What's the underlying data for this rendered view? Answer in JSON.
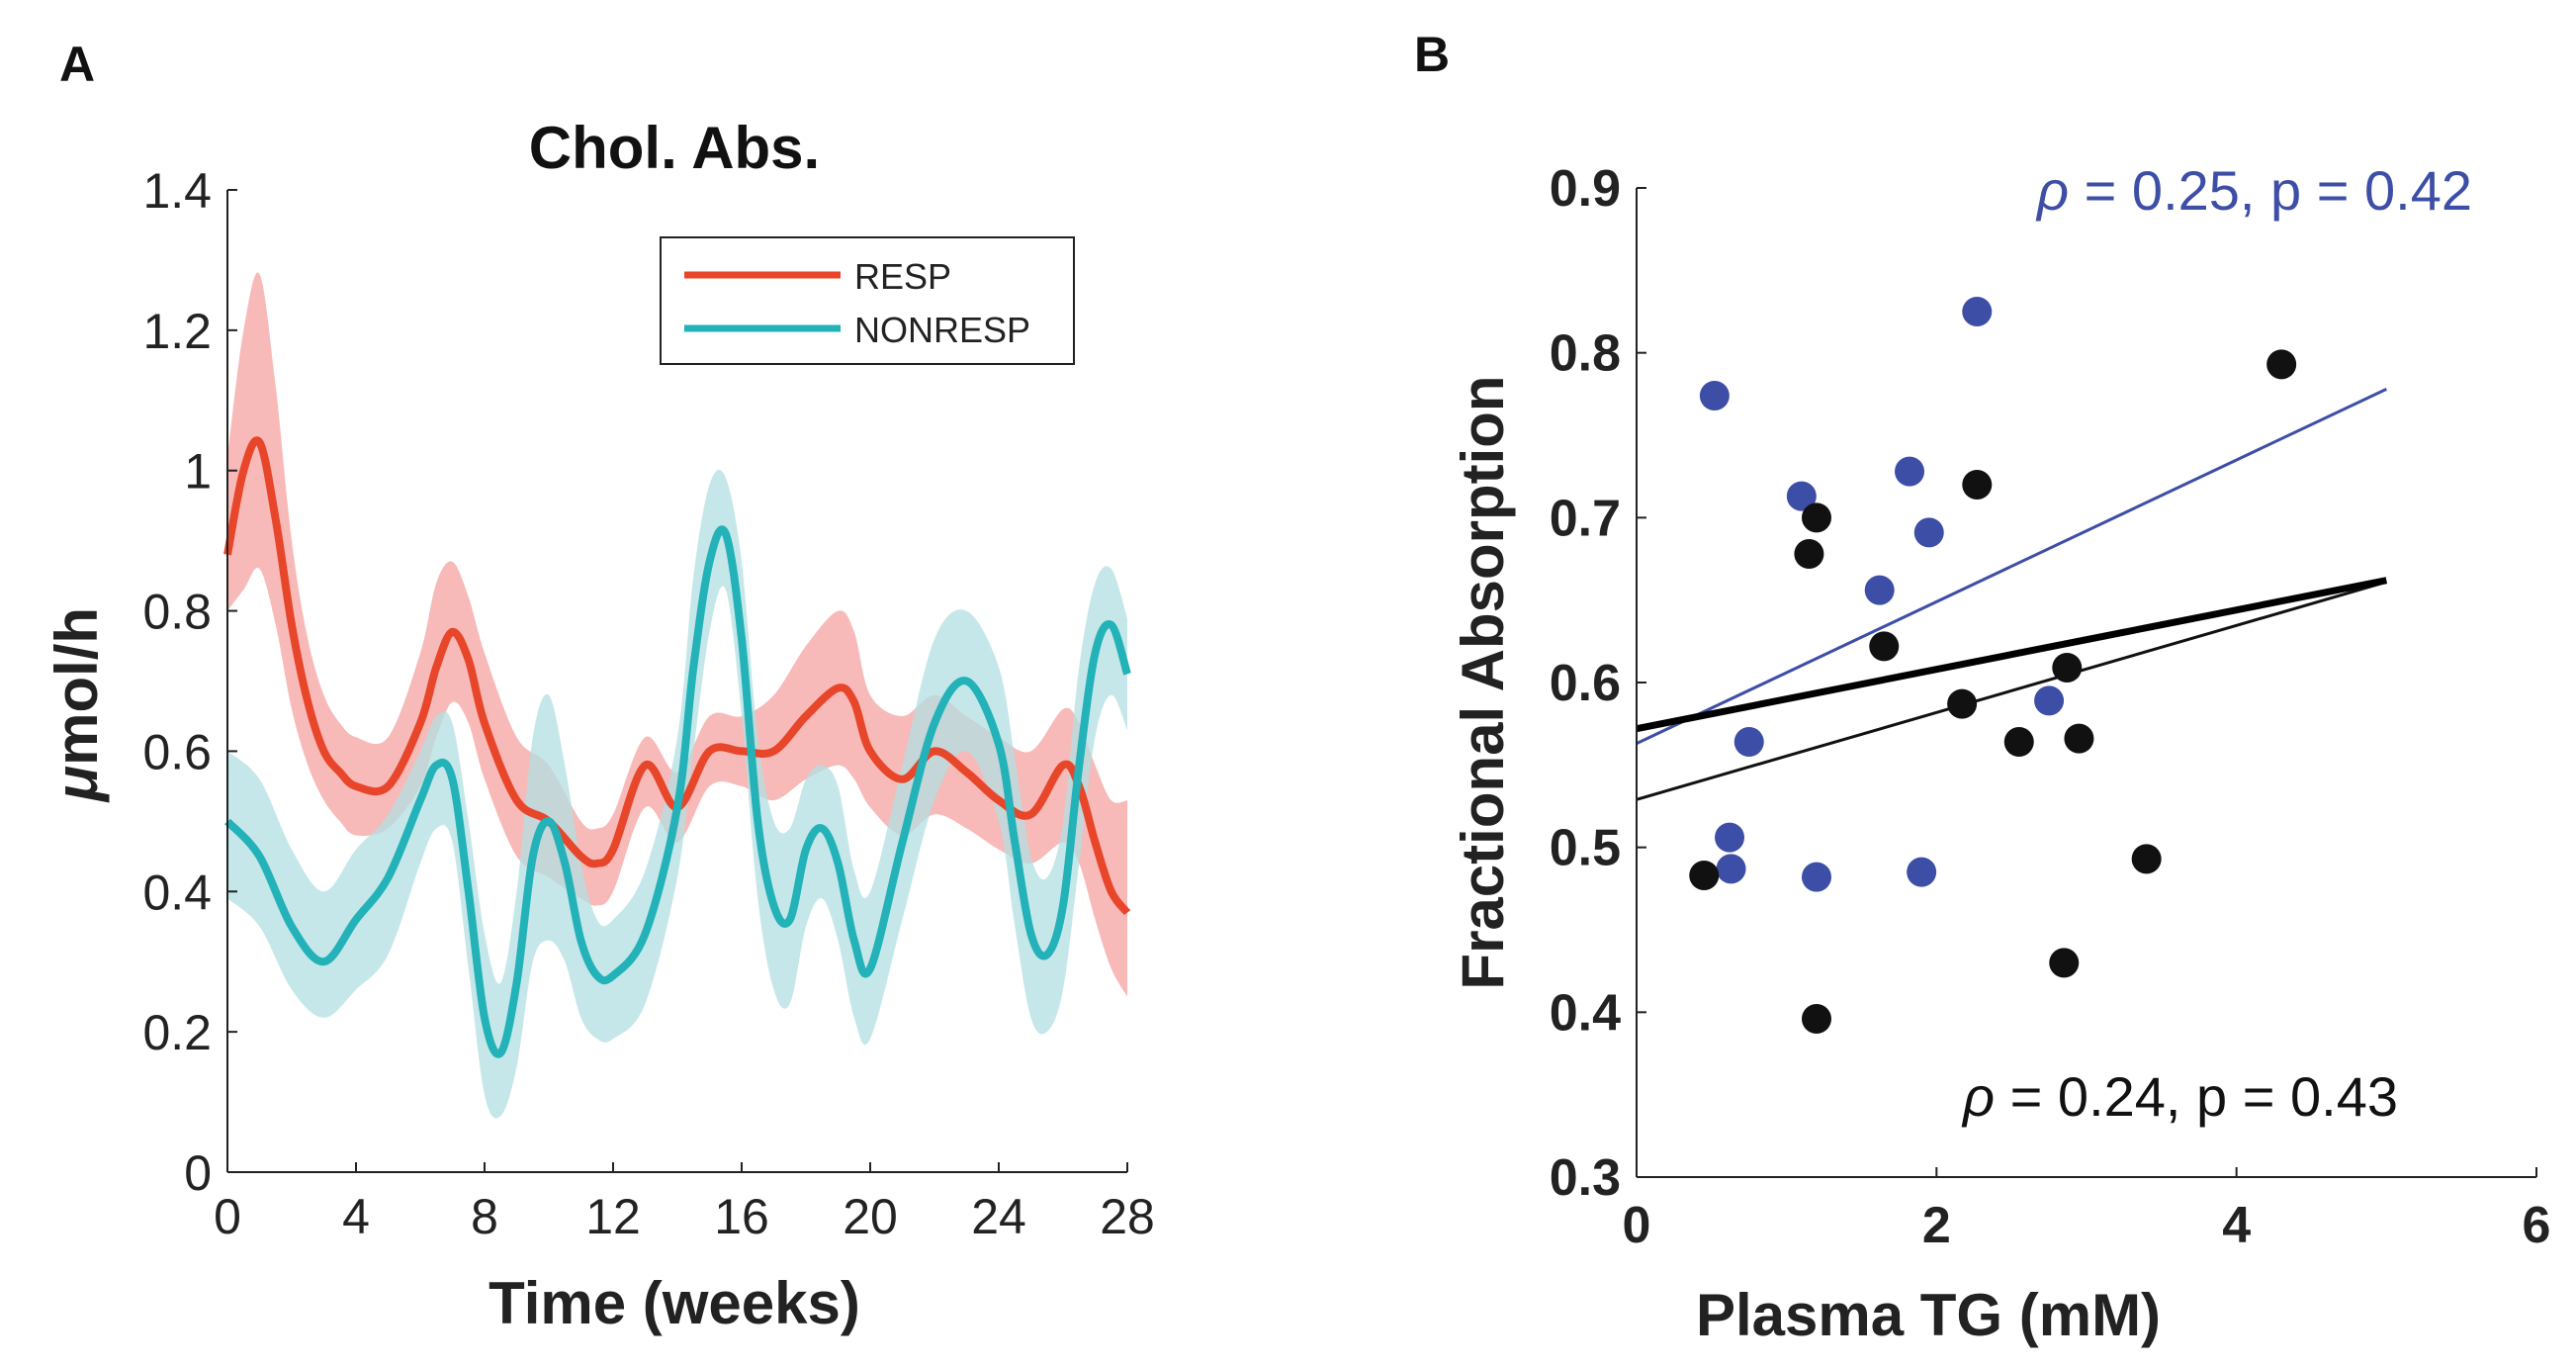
{
  "panel_a_label": "A",
  "panel_b_label": "B",
  "chart_data": [
    {
      "type": "line",
      "panel": "A",
      "title": "Chol. Abs.",
      "xlabel": "Time (weeks)",
      "ylabel": "μmol/h",
      "ylabel_prefix": "μ",
      "ylabel_rest": "mol/h",
      "xlim": [
        0,
        28
      ],
      "ylim": [
        0,
        1.4
      ],
      "xticks": [
        0,
        4,
        8,
        12,
        16,
        20,
        24,
        28
      ],
      "yticks": [
        0,
        0.2,
        0.4,
        0.6,
        0.8,
        1,
        1.2,
        1.4
      ],
      "yticklabels": [
        "0",
        "0.2",
        "0.4",
        "0.6",
        "0.8",
        "1",
        "1.2",
        "1.4"
      ],
      "legend": {
        "placement": "top-right",
        "entries": [
          "RESP",
          "NONRESP"
        ]
      },
      "series": [
        {
          "name": "RESP",
          "color": "#e8462a",
          "band_color": "#f4a3a0",
          "x": [
            0,
            0.5,
            1,
            1.5,
            2,
            2.5,
            3,
            3.5,
            4,
            5,
            6,
            6.5,
            7,
            7.5,
            8,
            9,
            10,
            11,
            11.5,
            12,
            13,
            14,
            15,
            16,
            17,
            18,
            19,
            19.5,
            20,
            21,
            22,
            23,
            24,
            25,
            26,
            26.5,
            27,
            27.5,
            28
          ],
          "values": [
            0.88,
            1.0,
            1.04,
            0.93,
            0.78,
            0.67,
            0.6,
            0.57,
            0.55,
            0.55,
            0.64,
            0.72,
            0.77,
            0.73,
            0.64,
            0.53,
            0.5,
            0.45,
            0.44,
            0.46,
            0.58,
            0.52,
            0.6,
            0.6,
            0.6,
            0.65,
            0.69,
            0.67,
            0.6,
            0.56,
            0.6,
            0.57,
            0.53,
            0.51,
            0.58,
            0.55,
            0.47,
            0.4,
            0.37
          ],
          "upper": [
            1.02,
            1.2,
            1.28,
            1.12,
            0.9,
            0.76,
            0.68,
            0.64,
            0.62,
            0.62,
            0.74,
            0.84,
            0.87,
            0.82,
            0.74,
            0.62,
            0.58,
            0.5,
            0.49,
            0.51,
            0.62,
            0.57,
            0.65,
            0.65,
            0.68,
            0.75,
            0.8,
            0.77,
            0.68,
            0.65,
            0.68,
            0.65,
            0.62,
            0.6,
            0.66,
            0.64,
            0.58,
            0.53,
            0.53
          ],
          "lower": [
            0.8,
            0.83,
            0.86,
            0.78,
            0.66,
            0.58,
            0.53,
            0.5,
            0.48,
            0.49,
            0.55,
            0.62,
            0.67,
            0.64,
            0.56,
            0.45,
            0.42,
            0.39,
            0.38,
            0.4,
            0.52,
            0.47,
            0.55,
            0.55,
            0.53,
            0.56,
            0.58,
            0.56,
            0.52,
            0.48,
            0.51,
            0.49,
            0.46,
            0.44,
            0.47,
            0.44,
            0.36,
            0.29,
            0.25
          ]
        },
        {
          "name": "NONRESP",
          "color": "#22b2b8",
          "band_color": "#b3dfe2",
          "x": [
            0,
            1,
            2,
            3,
            4,
            5,
            6,
            6.5,
            7,
            7.5,
            8,
            8.5,
            9,
            9.5,
            10,
            10.5,
            11,
            11.5,
            12,
            13,
            14,
            14.5,
            15,
            15.5,
            16,
            16.5,
            17,
            17.5,
            18,
            18.5,
            19,
            19.5,
            20,
            21,
            22,
            23,
            24,
            24.5,
            25,
            25.5,
            26,
            26.5,
            27,
            27.5,
            28
          ],
          "values": [
            0.5,
            0.45,
            0.35,
            0.3,
            0.36,
            0.42,
            0.53,
            0.58,
            0.56,
            0.4,
            0.22,
            0.17,
            0.27,
            0.45,
            0.5,
            0.44,
            0.33,
            0.28,
            0.28,
            0.34,
            0.52,
            0.72,
            0.87,
            0.91,
            0.76,
            0.5,
            0.38,
            0.36,
            0.46,
            0.49,
            0.44,
            0.33,
            0.29,
            0.47,
            0.64,
            0.7,
            0.61,
            0.47,
            0.34,
            0.31,
            0.38,
            0.58,
            0.74,
            0.78,
            0.71
          ],
          "upper": [
            0.6,
            0.56,
            0.46,
            0.4,
            0.46,
            0.51,
            0.6,
            0.65,
            0.64,
            0.5,
            0.34,
            0.27,
            0.4,
            0.62,
            0.68,
            0.58,
            0.44,
            0.36,
            0.36,
            0.43,
            0.62,
            0.85,
            0.98,
            0.99,
            0.87,
            0.62,
            0.5,
            0.49,
            0.56,
            0.58,
            0.55,
            0.43,
            0.4,
            0.58,
            0.76,
            0.8,
            0.72,
            0.59,
            0.45,
            0.42,
            0.5,
            0.72,
            0.84,
            0.86,
            0.79
          ],
          "lower": [
            0.39,
            0.35,
            0.26,
            0.22,
            0.26,
            0.31,
            0.44,
            0.49,
            0.47,
            0.29,
            0.11,
            0.08,
            0.15,
            0.3,
            0.33,
            0.3,
            0.22,
            0.19,
            0.19,
            0.24,
            0.42,
            0.6,
            0.77,
            0.83,
            0.65,
            0.39,
            0.26,
            0.24,
            0.35,
            0.39,
            0.33,
            0.22,
            0.19,
            0.36,
            0.53,
            0.6,
            0.5,
            0.35,
            0.22,
            0.2,
            0.26,
            0.44,
            0.62,
            0.68,
            0.63
          ]
        }
      ]
    },
    {
      "type": "scatter",
      "panel": "B",
      "title": "",
      "xlabel": "Plasma TG (mM)",
      "ylabel": "Fractional Absorption",
      "xlim": [
        0,
        6
      ],
      "ylim": [
        0.3,
        0.9
      ],
      "xticks": [
        0,
        2,
        4,
        6
      ],
      "yticks": [
        0.3,
        0.4,
        0.5,
        0.6,
        0.7,
        0.8,
        0.9
      ],
      "yticklabels": [
        "0.3",
        "0.4",
        "0.5",
        "0.6",
        "0.7",
        "0.8",
        "0.9"
      ],
      "annotations": [
        {
          "text_symbol": "ρ",
          "text_rest": " = 0.25, p = 0.42",
          "color": "#3d4ea6",
          "placement": "top-right"
        },
        {
          "text_symbol": "ρ",
          "text_rest": " = 0.24, p = 0.43",
          "color": "#111111",
          "placement": "bottom-right"
        }
      ],
      "series": [
        {
          "name": "blue",
          "color": "#3d4ea6",
          "points": [
            [
              0.52,
              0.774
            ],
            [
              0.62,
              0.506
            ],
            [
              0.63,
              0.487
            ],
            [
              0.75,
              0.564
            ],
            [
              1.1,
              0.713
            ],
            [
              1.2,
              0.482
            ],
            [
              1.62,
              0.656
            ],
            [
              1.82,
              0.728
            ],
            [
              1.9,
              0.485
            ],
            [
              1.95,
              0.691
            ],
            [
              2.27,
              0.825
            ],
            [
              2.75,
              0.589
            ]
          ],
          "fit": {
            "x": [
              0,
              5
            ],
            "y": [
              0.563,
              0.778
            ],
            "width": 1
          }
        },
        {
          "name": "black",
          "color": "#111111",
          "points": [
            [
              0.45,
              0.483
            ],
            [
              1.15,
              0.678
            ],
            [
              1.2,
              0.7
            ],
            [
              1.2,
              0.396
            ],
            [
              1.65,
              0.622
            ],
            [
              2.17,
              0.587
            ],
            [
              2.27,
              0.72
            ],
            [
              2.55,
              0.564
            ],
            [
              2.85,
              0.43
            ],
            [
              2.87,
              0.609
            ],
            [
              2.95,
              0.566
            ],
            [
              3.4,
              0.493
            ],
            [
              4.3,
              0.793
            ]
          ],
          "fit": {
            "x": [
              0,
              5
            ],
            "y": [
              0.529,
              0.661
            ],
            "width": 1
          }
        },
        {
          "name": "pooled",
          "color": "#000000",
          "points": [],
          "fit": {
            "x": [
              0,
              5
            ],
            "y": [
              0.572,
              0.662
            ],
            "width": 2
          }
        }
      ]
    }
  ]
}
